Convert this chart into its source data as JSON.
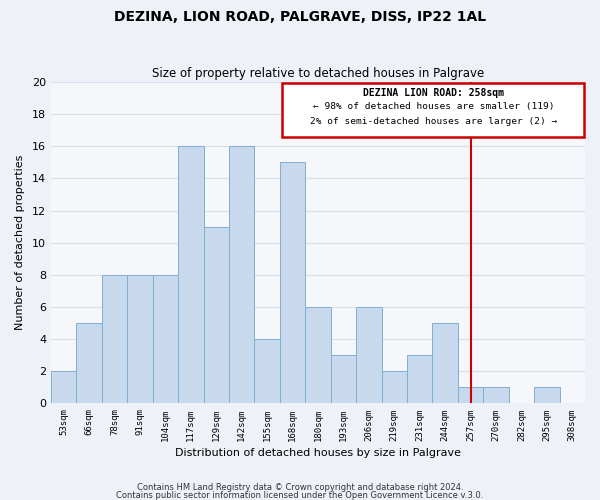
{
  "title": "DEZINA, LION ROAD, PALGRAVE, DISS, IP22 1AL",
  "subtitle": "Size of property relative to detached houses in Palgrave",
  "xlabel": "Distribution of detached houses by size in Palgrave",
  "ylabel": "Number of detached properties",
  "footer_line1": "Contains HM Land Registry data © Crown copyright and database right 2024.",
  "footer_line2": "Contains public sector information licensed under the Open Government Licence v.3.0.",
  "bin_labels": [
    "53sqm",
    "66sqm",
    "78sqm",
    "91sqm",
    "104sqm",
    "117sqm",
    "129sqm",
    "142sqm",
    "155sqm",
    "168sqm",
    "180sqm",
    "193sqm",
    "206sqm",
    "219sqm",
    "231sqm",
    "244sqm",
    "257sqm",
    "270sqm",
    "282sqm",
    "295sqm",
    "308sqm"
  ],
  "bar_heights": [
    2,
    5,
    8,
    8,
    8,
    16,
    11,
    16,
    4,
    15,
    6,
    3,
    6,
    2,
    3,
    5,
    1,
    1,
    0,
    1,
    0
  ],
  "bar_color": "#c8d8ed",
  "bar_edge_color": "#7fafd4",
  "grid_color": "#d8dfe8",
  "annotation_box_color": "#cc0000",
  "vline_color": "#cc0000",
  "vline_x_index": 16,
  "annotation_title": "DEZINA LION ROAD: 258sqm",
  "annotation_line1": "← 98% of detached houses are smaller (119)",
  "annotation_line2": "2% of semi-detached houses are larger (2) →",
  "ylim": [
    0,
    20
  ],
  "yticks": [
    0,
    2,
    4,
    6,
    8,
    10,
    12,
    14,
    16,
    18,
    20
  ],
  "background_color": "#eef2f8",
  "plot_bg_color": "#f5f7fb"
}
